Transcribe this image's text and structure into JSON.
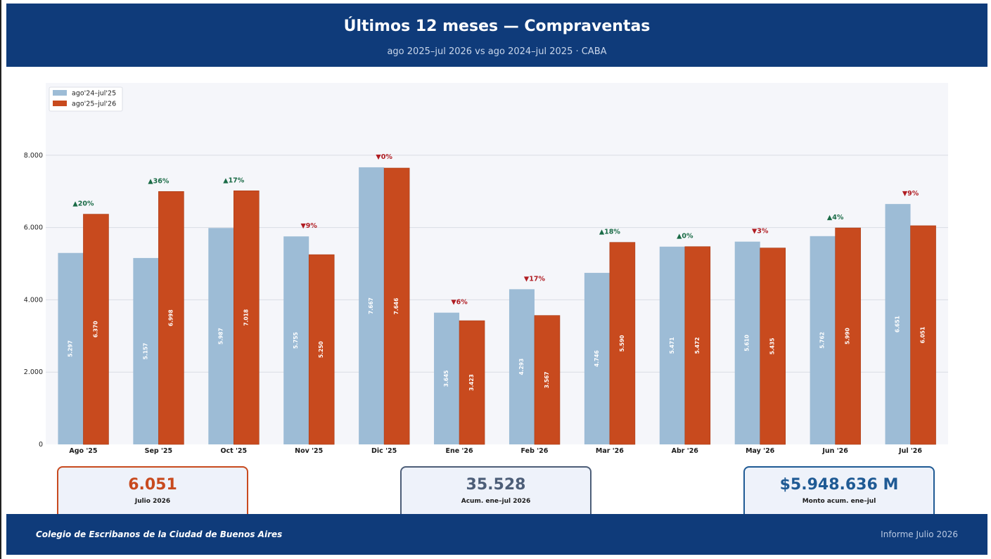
{
  "header": {
    "title": "Últimos 12 meses — Compraventas",
    "subtitle": "ago 2025–jul 2026 vs ago 2024–jul 2025 · CABA"
  },
  "colors": {
    "header_bg": "#0f3b7a",
    "prev_series": "#9dbcd6",
    "curr_series": "#c84a1e",
    "up": "#1a6b46",
    "down": "#b01c22",
    "plot_bg": "#f5f6fa"
  },
  "chart_data": {
    "type": "bar",
    "categories": [
      "Ago '25",
      "Sep '25",
      "Oct '25",
      "Nov '25",
      "Dic '25",
      "Ene '26",
      "Feb '26",
      "Mar '26",
      "Abr '26",
      "May '26",
      "Jun '26",
      "Jul '26"
    ],
    "series": [
      {
        "name": "ago'24–jul'25",
        "values": [
          5297,
          5157,
          5987,
          5755,
          7667,
          3645,
          4293,
          4746,
          5471,
          5610,
          5762,
          6651
        ],
        "labels": [
          "5.297",
          "5.157",
          "5.987",
          "5.755",
          "7.667",
          "3.645",
          "4.293",
          "4.746",
          "5.471",
          "5.610",
          "5.762",
          "6.651"
        ]
      },
      {
        "name": "ago'25–jul'26",
        "values": [
          6370,
          6998,
          7018,
          5250,
          7646,
          3423,
          3567,
          5590,
          5472,
          5435,
          5990,
          6051
        ],
        "labels": [
          "6.370",
          "6.998",
          "7.018",
          "5.250",
          "7.646",
          "3.423",
          "3.567",
          "5.590",
          "5.472",
          "5.435",
          "5.990",
          "6.051"
        ]
      }
    ],
    "changes": [
      "▲20%",
      "▲36%",
      "▲17%",
      "▼9%",
      "▼0%",
      "▼6%",
      "▼17%",
      "▲18%",
      "▲0%",
      "▼3%",
      "▲4%",
      "▼9%"
    ],
    "yticks": [
      0,
      2000,
      4000,
      6000,
      8000
    ],
    "ytick_labels": [
      "0",
      "2.000",
      "4.000",
      "6.000",
      "8.000"
    ],
    "ylim": [
      0,
      10000
    ],
    "grid": true,
    "legend": "top-left"
  },
  "kpis": [
    {
      "value": "6.051",
      "label": "Julio 2026",
      "color": "#c84a1e"
    },
    {
      "value": "35.528",
      "label": "Acum. ene–jul 2026",
      "color": "#4d5e78"
    },
    {
      "value": "$5.948.636 M",
      "label": "Monto acum. ene–jul",
      "color": "#1f5a94"
    }
  ],
  "footer": {
    "org": "Colegio de Escribanos de la Ciudad de Buenos Aires",
    "report": "Informe Julio 2026"
  }
}
